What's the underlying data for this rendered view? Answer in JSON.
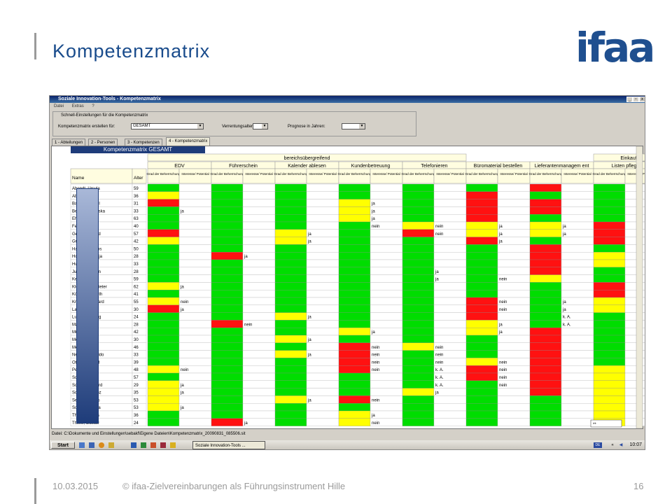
{
  "slide": {
    "title": "Kompetenzmatrix",
    "logo": "ifaa",
    "footer_date": "10.03.2015",
    "footer_text": "© ifaa-Zielvereinbarungen als Führungsinstrument Hille",
    "page_number": "16"
  },
  "app": {
    "window_title": "Soziale Innovation-Tools - Kompetenzmatrix",
    "window_buttons": [
      "_",
      "▫",
      "x"
    ],
    "menu": [
      "Datei",
      "Extras",
      "?"
    ],
    "settings": {
      "group_title": "Schnell-Einstellungen für die Kompetenzmatrix",
      "create_for_label": "Kompetenzmatrix erstellen für:",
      "create_for_value": "GESAMT",
      "retirement_label": "Verrentungsalter:",
      "retirement_value": "",
      "forecast_label": "Prognose in Jahren:",
      "forecast_value": ""
    },
    "tabs": [
      "1 - Abteilungen",
      "2 - Personen",
      "3 - Kompetenzen",
      "4 - Kompetenzmatrix"
    ],
    "active_tab": 3,
    "matrix_title": "Kompetenzmatrix GESAMT",
    "group_header": "bereichsübergreifend",
    "group_header_right": "Einkauf",
    "col_name": "Name",
    "col_age": "Alter",
    "sub_grade": "Grad der Beherrschung",
    "sub_interest": "Interesse/ Potential",
    "competencies": [
      "EDV",
      "Führerschein",
      "Kalender ablesen",
      "Kundenbetreuung",
      "Telefonieren",
      "Büromaterial bestellen",
      "Lieferantenmanagem ent",
      "Listen pflege"
    ],
    "rows": [
      {
        "name": "Abendt, Ursula",
        "age": "59"
      },
      {
        "name": "Abel, Michael",
        "age": "36"
      },
      {
        "name": "Bauer, Michael",
        "age": "31"
      },
      {
        "name": "Berger, Franziska",
        "age": "33"
      },
      {
        "name": "Ehrlich, Erich",
        "age": "63"
      },
      {
        "name": "Fechner, Uwe",
        "age": "40"
      },
      {
        "name": "Gebhardt, Fred",
        "age": "57"
      },
      {
        "name": "Grimm, Karin",
        "age": "42"
      },
      {
        "name": "Hartmann, Jens",
        "age": "50"
      },
      {
        "name": "Hoffmann, Katja",
        "age": "28"
      },
      {
        "name": "Huber, Ina",
        "age": "33"
      },
      {
        "name": "Jung, Hermann",
        "age": "28"
      },
      {
        "name": "Keller, Peter",
        "age": "59"
      },
      {
        "name": "Klein, Klaus-Dieter",
        "age": "62"
      },
      {
        "name": "König, Elisabeth",
        "age": "41"
      },
      {
        "name": "Krüger, Bernhard",
        "age": "55"
      },
      {
        "name": "Lange, Udo",
        "age": "30"
      },
      {
        "name": "Ludwig, Ludwig",
        "age": "24"
      },
      {
        "name": "Maier, Georg",
        "age": "28"
      },
      {
        "name": "Müller, Walter",
        "age": "42"
      },
      {
        "name": "Möller, Tina",
        "age": "30"
      },
      {
        "name": "Meier, Paul",
        "age": "46"
      },
      {
        "name": "Neumann, Guido",
        "age": "33"
      },
      {
        "name": "Otto, Bernhard",
        "age": "39"
      },
      {
        "name": "Peters, Dieter",
        "age": "48"
      },
      {
        "name": "Schmidt, Fred",
        "age": "57"
      },
      {
        "name": "Schulz, Gerhard",
        "age": "29"
      },
      {
        "name": "Schwarz, Heinz",
        "age": "35"
      },
      {
        "name": "Seidel, Markus",
        "age": "53"
      },
      {
        "name": "Sommer, Maria",
        "age": "53"
      },
      {
        "name": "Thomas, Hans",
        "age": "36"
      },
      {
        "name": "Thiele, Gustav",
        "age": "24"
      }
    ],
    "grades": [
      "GGGGGGRG",
      "YGGGGRGG",
      "RGGYGRRG",
      "GGGYGRRG",
      "GGGYGRGG",
      "GGGGYYYR",
      "RGYGRYYR",
      "YGYGGRGR",
      "GGGGGGRG",
      "GRGGGGRY",
      "GGGGGGRY",
      "GGGGGGRG",
      "GGGGGGYG",
      "YGGGGGGR",
      "GGGGGGGR",
      "YGGGGRGY",
      "RGGGGRGY",
      "GGYGGRGG",
      "GRGGGYGG",
      "GGGYGYRG",
      "GGYGGGRG",
      "GGGRYGRG",
      "GGYRGGRG",
      "GGGRGYRG",
      "YGGRGRRY",
      "GGGGGRRY",
      "YGGGGGRY",
      "YGGGYGRY",
      "YGYRGGGY",
      "YGGGGGGY",
      "GGGYGGGY",
      "GRGYGGGY"
    ],
    "interest": [
      [
        "",
        "",
        "",
        "",
        "",
        "",
        "",
        ""
      ],
      [
        "",
        "",
        "",
        "",
        "",
        "",
        "",
        ""
      ],
      [
        "",
        "",
        "",
        "ja",
        "",
        "",
        "",
        ""
      ],
      [
        "ja",
        "",
        "",
        "ja",
        "",
        "",
        "",
        ""
      ],
      [
        "",
        "",
        "",
        "ja",
        "",
        "",
        "",
        ""
      ],
      [
        "",
        "",
        "",
        "nein",
        "nein",
        "ja",
        "ja",
        ""
      ],
      [
        "",
        "",
        "ja",
        "",
        "nein",
        "ja",
        "ja",
        ""
      ],
      [
        "",
        "",
        "ja",
        "",
        "",
        "ja",
        "",
        ""
      ],
      [
        "",
        "",
        "",
        "",
        "",
        "",
        "",
        ""
      ],
      [
        "",
        "ja",
        "",
        "",
        "",
        "",
        "",
        ""
      ],
      [
        "",
        "",
        "",
        "",
        "",
        "",
        "",
        ""
      ],
      [
        "",
        "",
        "",
        "",
        "ja",
        "",
        "",
        ""
      ],
      [
        "",
        "",
        "",
        "",
        "ja",
        "nein",
        "",
        ""
      ],
      [
        "ja",
        "",
        "",
        "",
        "",
        "",
        "",
        ""
      ],
      [
        "",
        "",
        "",
        "",
        "",
        "",
        "",
        ""
      ],
      [
        "nein",
        "",
        "",
        "",
        "",
        "nein",
        "ja",
        ""
      ],
      [
        "ja",
        "",
        "",
        "",
        "",
        "nein",
        "ja",
        ""
      ],
      [
        "",
        "",
        "ja",
        "",
        "",
        "",
        "k. A.",
        ""
      ],
      [
        "",
        "nein",
        "",
        "",
        "",
        "ja",
        "k. A.",
        ""
      ],
      [
        "",
        "",
        "",
        "ja",
        "",
        "ja",
        "",
        ""
      ],
      [
        "",
        "",
        "ja",
        "",
        "",
        "",
        "",
        ""
      ],
      [
        "",
        "",
        "",
        "nein",
        "nein",
        "",
        "",
        ""
      ],
      [
        "",
        "",
        "ja",
        "nein",
        "nein",
        "",
        "",
        ""
      ],
      [
        "",
        "",
        "",
        "nein",
        "nein",
        "nein",
        "",
        ""
      ],
      [
        "nein",
        "",
        "",
        "nein",
        "k. A.",
        "nein",
        "",
        ""
      ],
      [
        "",
        "",
        "",
        "",
        "k. A.",
        "nein",
        "",
        ""
      ],
      [
        "ja",
        "",
        "",
        "",
        "k. A.",
        "nein",
        "",
        ""
      ],
      [
        "ja",
        "",
        "",
        "",
        "ja",
        "",
        "",
        ""
      ],
      [
        "",
        "",
        "ja",
        "nein",
        "",
        "",
        "",
        ""
      ],
      [
        "ja",
        "",
        "",
        "",
        "",
        "",
        "",
        ""
      ],
      [
        "",
        "",
        "",
        "ja",
        "",
        "",
        "",
        ""
      ],
      [
        "",
        "ja",
        "",
        "nein",
        "",
        "",
        "",
        ""
      ]
    ],
    "grade_colors": {
      "G": "#00dd00",
      "Y": "#ffff00",
      "R": "#ff1111"
    },
    "dropdown_value": "**",
    "status": "Datei: C:\\Dokumente und Einstellungen\\sebakf\\Eigene Dateien\\Kompetenzmatrix_20090831_085506.sit",
    "taskbar": {
      "start": "Start",
      "task": "Soziale Innovation-Tools ...",
      "lang": "DE",
      "clock": "10:07"
    }
  }
}
